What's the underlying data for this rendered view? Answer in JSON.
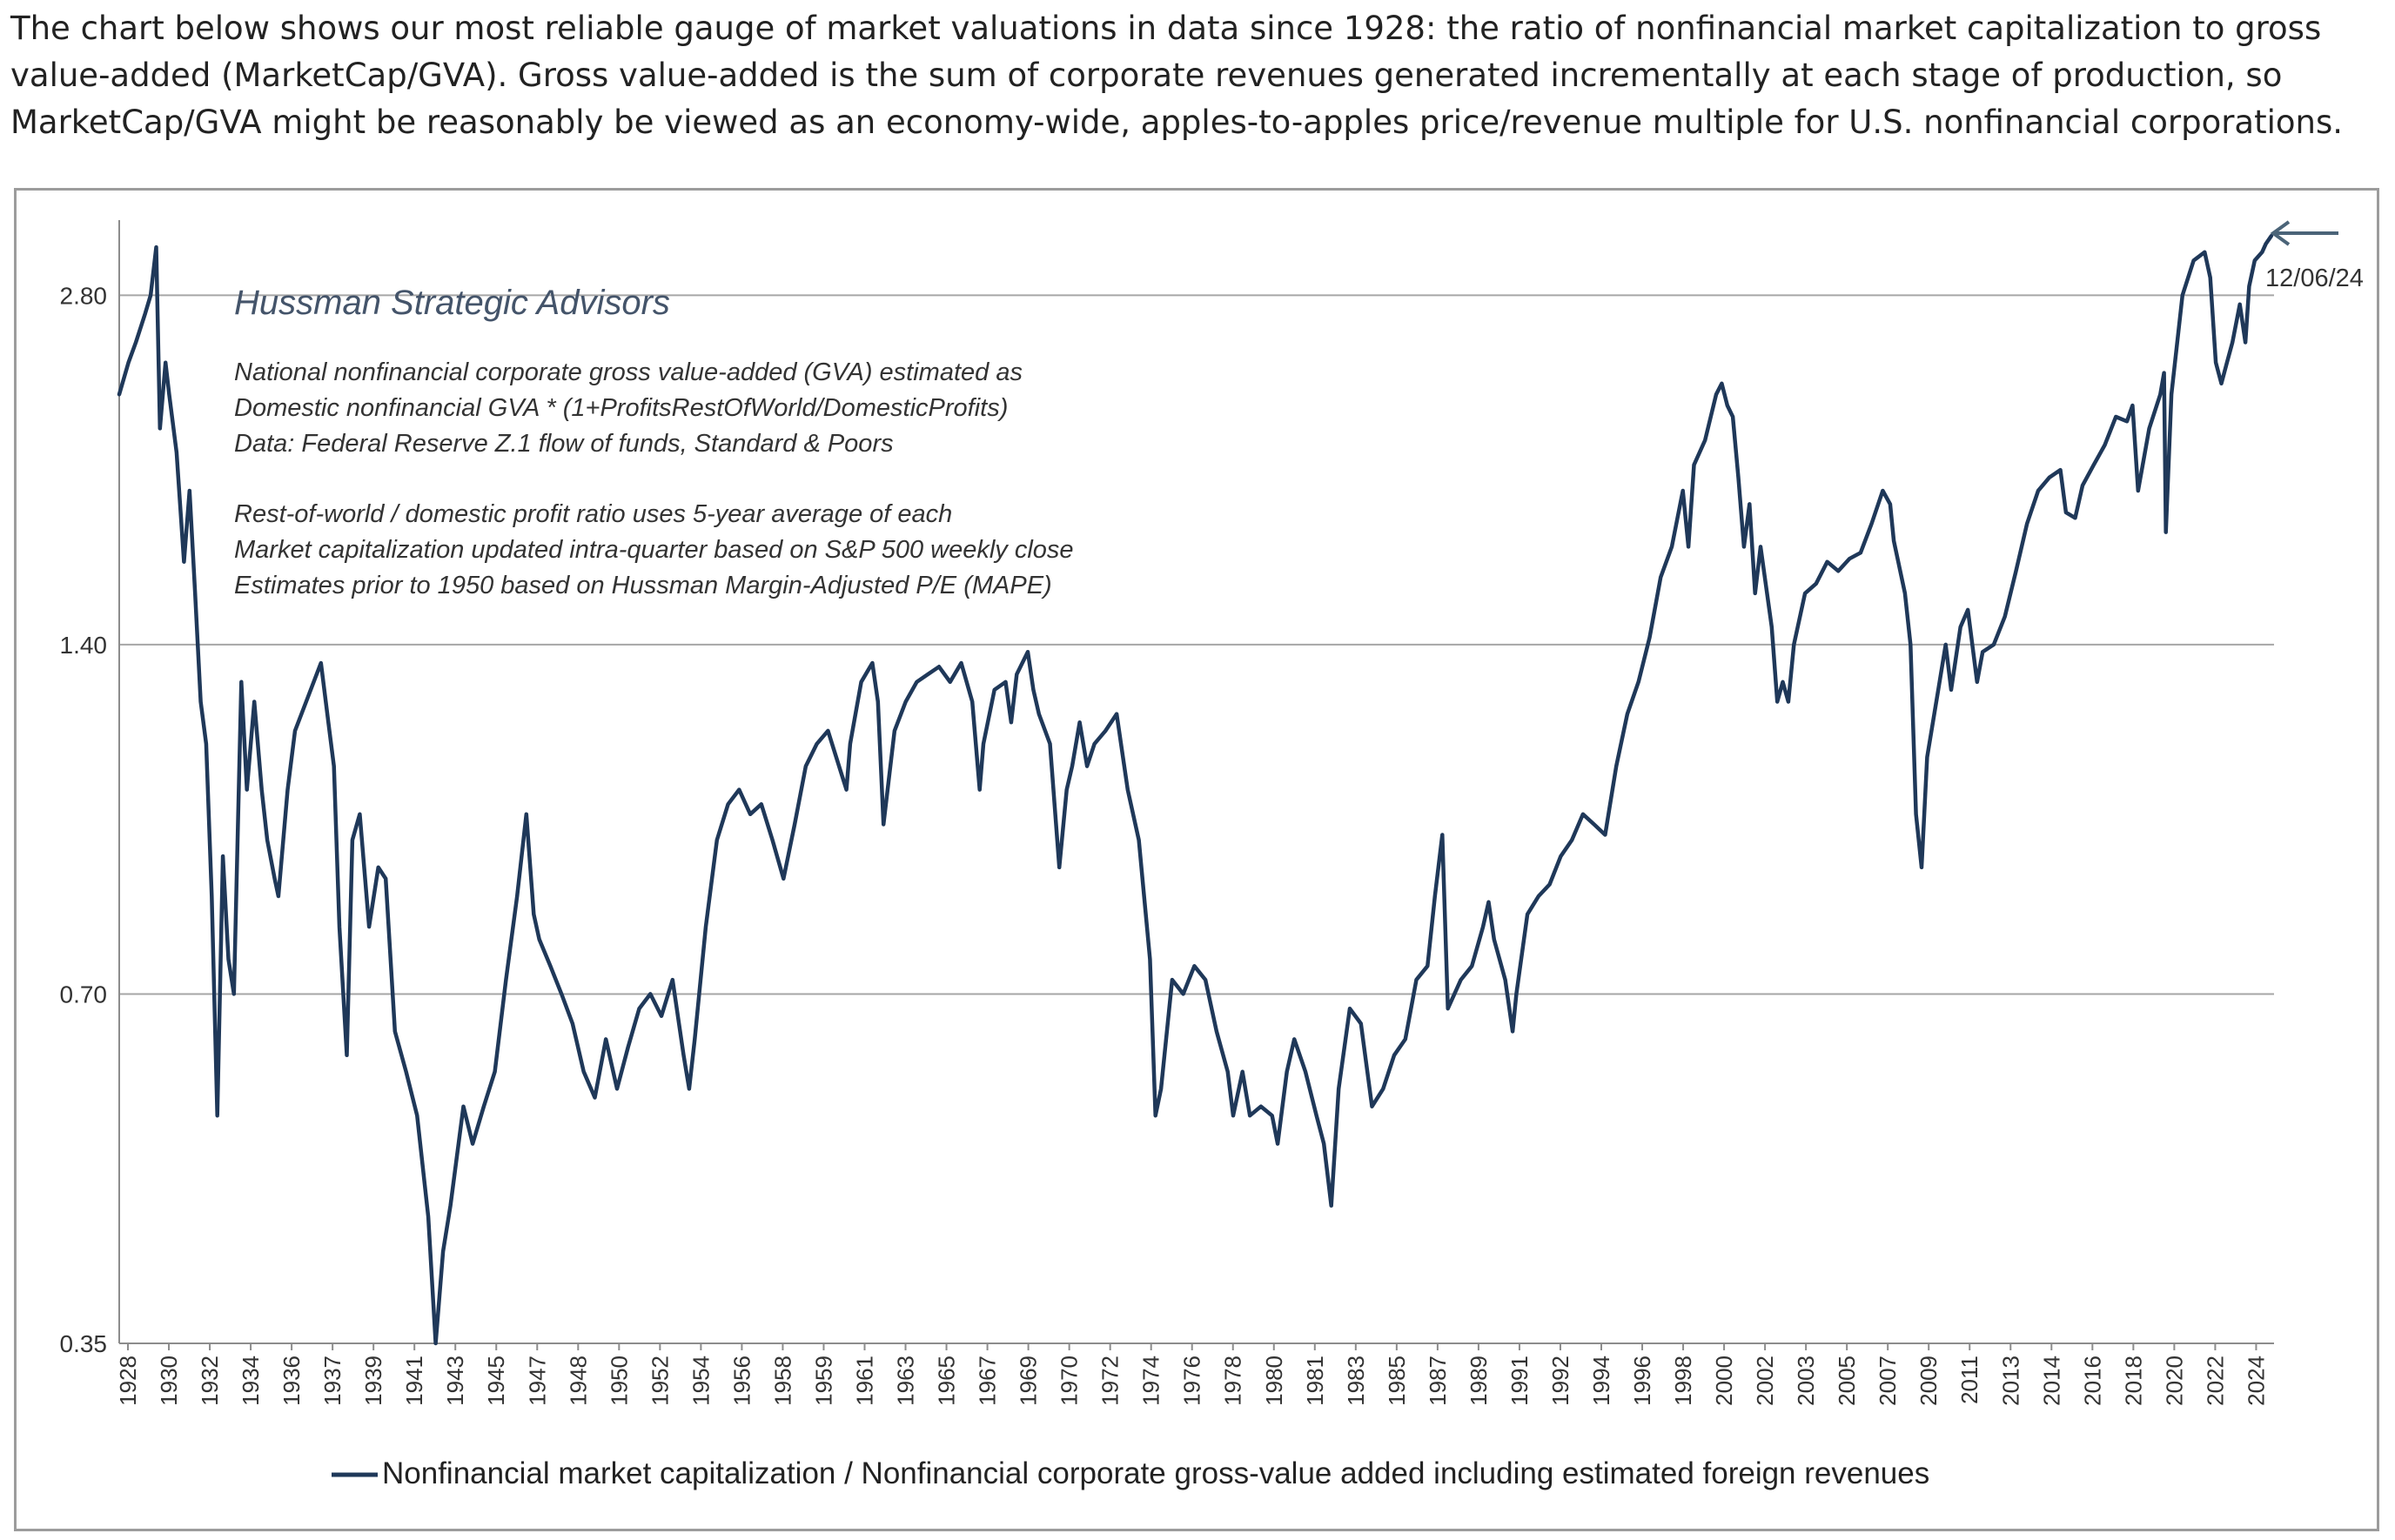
{
  "intro_text": "The chart below shows our most reliable gauge of market valuations in data since 1928: the ratio of nonfinancial market capitalization to gross value-added (MarketCap/GVA). Gross value-added is the sum of corporate revenues generated incrementally at each stage of production, so MarketCap/GVA might be reasonably be viewed as an economy-wide, apples-to-apples price/revenue multiple for U.S. nonfinancial corporations.",
  "colors": {
    "series": "#1f3859",
    "gridline": "#a6a6a6",
    "annotation_arrow": "#4b6478",
    "heading_text": "#44546a"
  },
  "chart_data": {
    "type": "line",
    "y_scale": "log",
    "ylim": [
      0.35,
      3.25
    ],
    "xlim": [
      "1928-01-01",
      "2025-01-15"
    ],
    "yticks": [
      0.35,
      0.7,
      1.4,
      2.8
    ],
    "ytick_labels": [
      "0.35",
      "0.70",
      "1.40",
      "2.80"
    ],
    "xtick_labels": [
      "1928",
      "1930",
      "1932",
      "1934",
      "1936",
      "1937",
      "1939",
      "1941",
      "1943",
      "1945",
      "1947",
      "1948",
      "1950",
      "1952",
      "1954",
      "1956",
      "1958",
      "1959",
      "1961",
      "1963",
      "1965",
      "1967",
      "1969",
      "1970",
      "1972",
      "1974",
      "1976",
      "1978",
      "1980",
      "1981",
      "1983",
      "1985",
      "1987",
      "1989",
      "1991",
      "1992",
      "1994",
      "1996",
      "1998",
      "2000",
      "2002",
      "2003",
      "2005",
      "2007",
      "2009",
      "2011",
      "2013",
      "2014",
      "2016",
      "2018",
      "2020",
      "2022",
      "2024"
    ],
    "grid": "horizontal",
    "legend_position": "bottom",
    "title": "",
    "xlabel": "",
    "ylabel": "",
    "series": [
      {
        "name": "Nonfinancial market capitalization / Nonfinancial corporate gross-value added including estimated foreign revenues",
        "points": [
          [
            "1928-01",
            2.3
          ],
          [
            "1928-06",
            2.45
          ],
          [
            "1928-10",
            2.55
          ],
          [
            "1929-03",
            2.7
          ],
          [
            "1929-06",
            2.8
          ],
          [
            "1929-09",
            3.08
          ],
          [
            "1929-11",
            2.15
          ],
          [
            "1930-02",
            2.45
          ],
          [
            "1930-04",
            2.3
          ],
          [
            "1930-08",
            2.05
          ],
          [
            "1930-12",
            1.65
          ],
          [
            "1931-03",
            1.9
          ],
          [
            "1931-06",
            1.55
          ],
          [
            "1931-09",
            1.25
          ],
          [
            "1931-12",
            1.15
          ],
          [
            "1932-03",
            0.85
          ],
          [
            "1932-06",
            0.55
          ],
          [
            "1932-09",
            0.92
          ],
          [
            "1932-12",
            0.75
          ],
          [
            "1933-03",
            0.7
          ],
          [
            "1933-07",
            1.3
          ],
          [
            "1933-10",
            1.05
          ],
          [
            "1934-02",
            1.25
          ],
          [
            "1934-06",
            1.05
          ],
          [
            "1934-09",
            0.95
          ],
          [
            "1935-01",
            0.88
          ],
          [
            "1935-03",
            0.85
          ],
          [
            "1935-08",
            1.05
          ],
          [
            "1935-12",
            1.18
          ],
          [
            "1936-06",
            1.25
          ],
          [
            "1937-02",
            1.35
          ],
          [
            "1937-06",
            1.2
          ],
          [
            "1937-09",
            1.1
          ],
          [
            "1937-12",
            0.8
          ],
          [
            "1938-04",
            0.62
          ],
          [
            "1938-07",
            0.95
          ],
          [
            "1938-11",
            1.0
          ],
          [
            "1939-04",
            0.8
          ],
          [
            "1939-09",
            0.9
          ],
          [
            "1940-01",
            0.88
          ],
          [
            "1940-06",
            0.65
          ],
          [
            "1940-12",
            0.6
          ],
          [
            "1941-06",
            0.55
          ],
          [
            "1941-12",
            0.45
          ],
          [
            "1942-04",
            0.35
          ],
          [
            "1942-08",
            0.42
          ],
          [
            "1942-12",
            0.46
          ],
          [
            "1943-07",
            0.56
          ],
          [
            "1943-12",
            0.52
          ],
          [
            "1944-06",
            0.56
          ],
          [
            "1944-12",
            0.6
          ],
          [
            "1945-06",
            0.72
          ],
          [
            "1945-12",
            0.85
          ],
          [
            "1946-05",
            1.0
          ],
          [
            "1946-09",
            0.82
          ],
          [
            "1946-12",
            0.78
          ],
          [
            "1947-06",
            0.74
          ],
          [
            "1947-12",
            0.7
          ],
          [
            "1948-06",
            0.66
          ],
          [
            "1948-12",
            0.6
          ],
          [
            "1949-06",
            0.57
          ],
          [
            "1949-12",
            0.64
          ],
          [
            "1950-06",
            0.58
          ],
          [
            "1950-12",
            0.63
          ],
          [
            "1951-06",
            0.68
          ],
          [
            "1951-12",
            0.7
          ],
          [
            "1952-06",
            0.67
          ],
          [
            "1952-12",
            0.72
          ],
          [
            "1953-06",
            0.62
          ],
          [
            "1953-09",
            0.58
          ],
          [
            "1953-12",
            0.64
          ],
          [
            "1954-06",
            0.8
          ],
          [
            "1954-12",
            0.95
          ],
          [
            "1955-06",
            1.02
          ],
          [
            "1955-12",
            1.05
          ],
          [
            "1956-06",
            1.0
          ],
          [
            "1956-12",
            1.02
          ],
          [
            "1957-06",
            0.95
          ],
          [
            "1957-12",
            0.88
          ],
          [
            "1958-06",
            0.98
          ],
          [
            "1958-12",
            1.1
          ],
          [
            "1959-06",
            1.15
          ],
          [
            "1959-12",
            1.18
          ],
          [
            "1960-06",
            1.1
          ],
          [
            "1960-10",
            1.05
          ],
          [
            "1960-12",
            1.15
          ],
          [
            "1961-06",
            1.3
          ],
          [
            "1961-12",
            1.35
          ],
          [
            "1962-03",
            1.25
          ],
          [
            "1962-06",
            0.98
          ],
          [
            "1962-12",
            1.18
          ],
          [
            "1963-06",
            1.25
          ],
          [
            "1963-12",
            1.3
          ],
          [
            "1964-06",
            1.32
          ],
          [
            "1964-12",
            1.34
          ],
          [
            "1965-06",
            1.3
          ],
          [
            "1965-12",
            1.35
          ],
          [
            "1966-06",
            1.25
          ],
          [
            "1966-10",
            1.05
          ],
          [
            "1966-12",
            1.15
          ],
          [
            "1967-06",
            1.28
          ],
          [
            "1967-12",
            1.3
          ],
          [
            "1968-03",
            1.2
          ],
          [
            "1968-06",
            1.32
          ],
          [
            "1968-12",
            1.38
          ],
          [
            "1969-03",
            1.28
          ],
          [
            "1969-06",
            1.22
          ],
          [
            "1969-12",
            1.15
          ],
          [
            "1970-05",
            0.9
          ],
          [
            "1970-09",
            1.05
          ],
          [
            "1970-12",
            1.1
          ],
          [
            "1971-04",
            1.2
          ],
          [
            "1971-08",
            1.1
          ],
          [
            "1971-12",
            1.15
          ],
          [
            "1972-06",
            1.18
          ],
          [
            "1972-12",
            1.22
          ],
          [
            "1973-06",
            1.05
          ],
          [
            "1973-12",
            0.95
          ],
          [
            "1974-06",
            0.75
          ],
          [
            "1974-09",
            0.55
          ],
          [
            "1974-12",
            0.58
          ],
          [
            "1975-06",
            0.72
          ],
          [
            "1975-12",
            0.7
          ],
          [
            "1976-06",
            0.74
          ],
          [
            "1976-12",
            0.72
          ],
          [
            "1977-06",
            0.65
          ],
          [
            "1977-12",
            0.6
          ],
          [
            "1978-03",
            0.55
          ],
          [
            "1978-08",
            0.6
          ],
          [
            "1978-12",
            0.55
          ],
          [
            "1979-06",
            0.56
          ],
          [
            "1979-12",
            0.55
          ],
          [
            "1980-03",
            0.52
          ],
          [
            "1980-08",
            0.6
          ],
          [
            "1980-12",
            0.64
          ],
          [
            "1981-06",
            0.6
          ],
          [
            "1981-12",
            0.55
          ],
          [
            "1982-04",
            0.52
          ],
          [
            "1982-08",
            0.46
          ],
          [
            "1982-12",
            0.58
          ],
          [
            "1983-06",
            0.68
          ],
          [
            "1983-12",
            0.66
          ],
          [
            "1984-06",
            0.56
          ],
          [
            "1984-12",
            0.58
          ],
          [
            "1985-06",
            0.62
          ],
          [
            "1985-12",
            0.64
          ],
          [
            "1986-06",
            0.72
          ],
          [
            "1986-12",
            0.74
          ],
          [
            "1987-04",
            0.85
          ],
          [
            "1987-08",
            0.96
          ],
          [
            "1987-11",
            0.68
          ],
          [
            "1988-06",
            0.72
          ],
          [
            "1988-12",
            0.74
          ],
          [
            "1989-06",
            0.8
          ],
          [
            "1989-09",
            0.84
          ],
          [
            "1989-12",
            0.78
          ],
          [
            "1990-06",
            0.72
          ],
          [
            "1990-10",
            0.65
          ],
          [
            "1990-12",
            0.7
          ],
          [
            "1991-06",
            0.82
          ],
          [
            "1991-12",
            0.85
          ],
          [
            "1992-06",
            0.87
          ],
          [
            "1992-12",
            0.92
          ],
          [
            "1993-06",
            0.95
          ],
          [
            "1993-12",
            1.0
          ],
          [
            "1994-06",
            0.98
          ],
          [
            "1994-12",
            0.96
          ],
          [
            "1995-06",
            1.1
          ],
          [
            "1995-12",
            1.22
          ],
          [
            "1996-06",
            1.3
          ],
          [
            "1996-12",
            1.42
          ],
          [
            "1997-06",
            1.6
          ],
          [
            "1997-12",
            1.7
          ],
          [
            "1998-06",
            1.9
          ],
          [
            "1998-09",
            1.7
          ],
          [
            "1998-12",
            2.0
          ],
          [
            "1999-06",
            2.1
          ],
          [
            "1999-12",
            2.3
          ],
          [
            "2000-03",
            2.35
          ],
          [
            "2000-06",
            2.25
          ],
          [
            "2000-09",
            2.2
          ],
          [
            "2000-12",
            1.95
          ],
          [
            "2001-03",
            1.7
          ],
          [
            "2001-06",
            1.85
          ],
          [
            "2001-09",
            1.55
          ],
          [
            "2001-12",
            1.7
          ],
          [
            "2002-06",
            1.45
          ],
          [
            "2002-09",
            1.25
          ],
          [
            "2002-12",
            1.3
          ],
          [
            "2003-03",
            1.25
          ],
          [
            "2003-06",
            1.4
          ],
          [
            "2003-12",
            1.55
          ],
          [
            "2004-06",
            1.58
          ],
          [
            "2004-12",
            1.65
          ],
          [
            "2005-06",
            1.62
          ],
          [
            "2005-12",
            1.66
          ],
          [
            "2006-06",
            1.68
          ],
          [
            "2006-12",
            1.78
          ],
          [
            "2007-06",
            1.9
          ],
          [
            "2007-10",
            1.85
          ],
          [
            "2007-12",
            1.72
          ],
          [
            "2008-06",
            1.55
          ],
          [
            "2008-09",
            1.4
          ],
          [
            "2008-12",
            1.0
          ],
          [
            "2009-03",
            0.9
          ],
          [
            "2009-06",
            1.12
          ],
          [
            "2009-12",
            1.28
          ],
          [
            "2010-04",
            1.4
          ],
          [
            "2010-07",
            1.28
          ],
          [
            "2010-12",
            1.45
          ],
          [
            "2011-04",
            1.5
          ],
          [
            "2011-09",
            1.3
          ],
          [
            "2011-12",
            1.38
          ],
          [
            "2012-06",
            1.4
          ],
          [
            "2012-12",
            1.48
          ],
          [
            "2013-06",
            1.62
          ],
          [
            "2013-12",
            1.78
          ],
          [
            "2014-06",
            1.9
          ],
          [
            "2014-12",
            1.95
          ],
          [
            "2015-06",
            1.98
          ],
          [
            "2015-09",
            1.82
          ],
          [
            "2016-02",
            1.8
          ],
          [
            "2016-06",
            1.92
          ],
          [
            "2016-12",
            2.0
          ],
          [
            "2017-06",
            2.08
          ],
          [
            "2017-12",
            2.2
          ],
          [
            "2018-06",
            2.18
          ],
          [
            "2018-09",
            2.25
          ],
          [
            "2018-12",
            1.9
          ],
          [
            "2019-06",
            2.15
          ],
          [
            "2019-12",
            2.3
          ],
          [
            "2020-02",
            2.4
          ],
          [
            "2020-03",
            1.75
          ],
          [
            "2020-06",
            2.3
          ],
          [
            "2020-12",
            2.8
          ],
          [
            "2021-06",
            3.0
          ],
          [
            "2021-12",
            3.05
          ],
          [
            "2022-03",
            2.9
          ],
          [
            "2022-06",
            2.45
          ],
          [
            "2022-09",
            2.35
          ],
          [
            "2022-12",
            2.45
          ],
          [
            "2023-03",
            2.55
          ],
          [
            "2023-07",
            2.75
          ],
          [
            "2023-10",
            2.55
          ],
          [
            "2023-12",
            2.85
          ],
          [
            "2024-03",
            3.0
          ],
          [
            "2024-07",
            3.05
          ],
          [
            "2024-09",
            3.1
          ],
          [
            "2024-12",
            3.15
          ]
        ]
      }
    ]
  },
  "annotations": {
    "watermark": "Hussman Strategic Advisors",
    "notes": [
      "National nonfinancial corporate gross value-added  (GVA) estimated as",
      "Domestic nonfinancial GVA * (1+ProfitsRestOfWorld/DomesticProfits)",
      "Data: Federal Reserve Z.1 flow of funds, Standard & Poors",
      "",
      "Rest-of-world / domestic profit ratio uses 5-year average of each",
      "Market capitalization updated intra-quarter based on S&P 500 weekly close",
      "Estimates prior to 1950 based on Hussman Margin-Adjusted  P/E (MAPE)"
    ],
    "latest_date_label": "12/06/24"
  }
}
